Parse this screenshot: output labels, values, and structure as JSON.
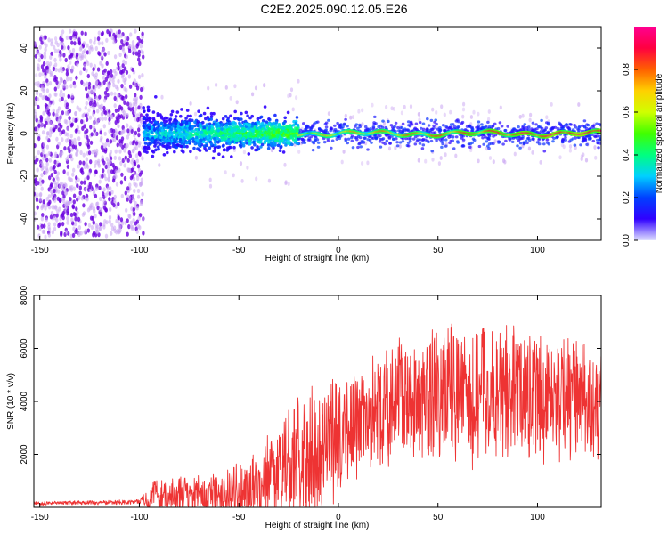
{
  "title": "C2E2.2025.090.12.05.E26",
  "colors": {
    "snr_line": "#ee3333",
    "scatter_sparse": "#c9a4f2",
    "scatter_dense": "#6a00e0"
  },
  "chart_data": [
    {
      "type": "heatmap",
      "xlabel": "Height of straight line (km)",
      "ylabel": "Frequency (Hz)",
      "xlim": [
        -153,
        132
      ],
      "ylim": [
        -50,
        50
      ],
      "xticks": [
        -150,
        -100,
        -50,
        0,
        50,
        100
      ],
      "yticks": [
        -40,
        -20,
        0,
        20,
        40
      ],
      "grid": false,
      "colorbar": {
        "label": "Normalized spectral amplitude",
        "range": [
          0,
          1
        ],
        "ticks": [
          "0.0",
          "0.2",
          "0.4",
          "0.6",
          "0.8"
        ],
        "colormap": [
          "#e0e0ff",
          "#3000ff",
          "#0040ff",
          "#00d0ff",
          "#00ff80",
          "#40ff00",
          "#d0ff00",
          "#ffd000",
          "#ff6000",
          "#ff0040",
          "#ff0090"
        ]
      },
      "regions": [
        {
          "x_range": [
            -153,
            -98
          ],
          "freq_spread": 48,
          "amplitude": 0.05
        },
        {
          "x_range": [
            -98,
            -20
          ],
          "freq_spread": 10,
          "amplitude": 0.3
        },
        {
          "x_range": [
            -20,
            132
          ],
          "freq_spread": 3,
          "amplitude": 0.9
        }
      ]
    },
    {
      "type": "line",
      "xlabel": "Height of straight line (km)",
      "ylabel": "SNR (10 * v/v)",
      "xlim": [
        -153,
        132
      ],
      "ylim": [
        0,
        8000
      ],
      "xticks": [
        -150,
        -100,
        -50,
        0,
        50,
        100
      ],
      "yticks": [
        2000,
        4000,
        6000,
        8000
      ],
      "grid": false,
      "envelope": [
        {
          "x": -153,
          "base": 150,
          "amp": 80
        },
        {
          "x": -100,
          "base": 200,
          "amp": 100
        },
        {
          "x": -95,
          "base": 400,
          "amp": 700
        },
        {
          "x": -60,
          "base": 500,
          "amp": 900
        },
        {
          "x": -40,
          "base": 800,
          "amp": 1500
        },
        {
          "x": -25,
          "base": 1500,
          "amp": 2500
        },
        {
          "x": -10,
          "base": 2200,
          "amp": 2700
        },
        {
          "x": 5,
          "base": 3000,
          "amp": 2600
        },
        {
          "x": 20,
          "base": 3800,
          "amp": 2500
        },
        {
          "x": 40,
          "base": 4200,
          "amp": 2700
        },
        {
          "x": 60,
          "base": 4500,
          "amp": 3200
        },
        {
          "x": 80,
          "base": 4300,
          "amp": 3000
        },
        {
          "x": 100,
          "base": 4200,
          "amp": 2800
        },
        {
          "x": 132,
          "base": 4000,
          "amp": 2700
        }
      ]
    }
  ]
}
